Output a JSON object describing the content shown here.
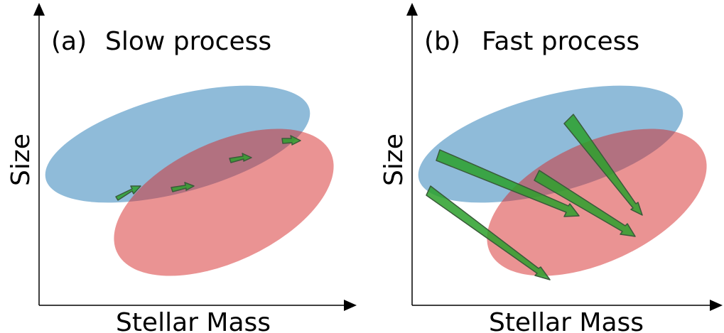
{
  "panels": [
    {
      "panel_label": "(a)",
      "title": "Slow process",
      "xlabel": "Stellar Mass",
      "ylabel": "Size"
    },
    {
      "panel_label": "(b)",
      "title": "Fast process",
      "xlabel": "Stellar Mass",
      "ylabel": "Size"
    }
  ],
  "colors": {
    "blue_region": "#1f77b4",
    "red_region": "#d62728",
    "arrow_fill": "#2ca02c",
    "arrow_stroke": "#3a5a3a",
    "axis": "#000000"
  }
}
